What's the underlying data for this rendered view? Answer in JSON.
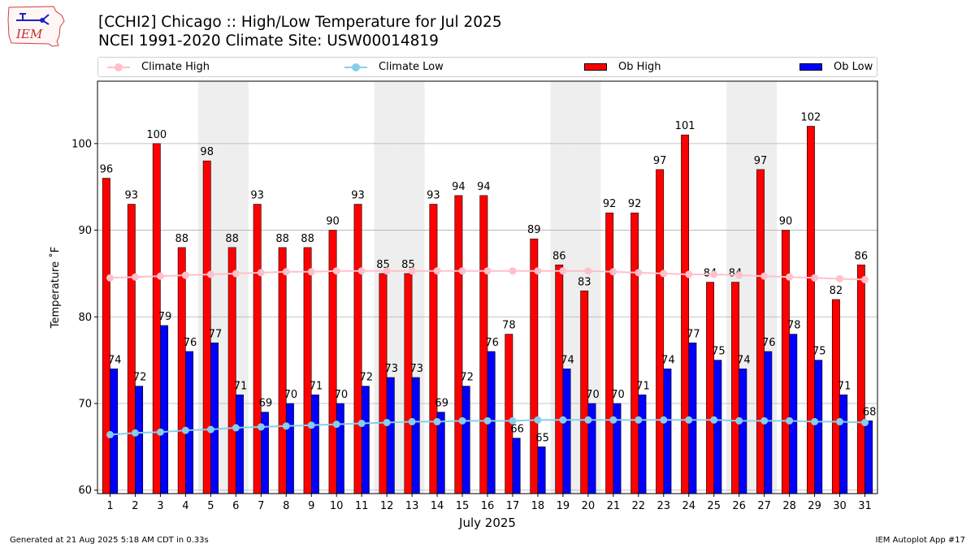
{
  "logo": {
    "text": "IEM",
    "icon": "iowa-state-outline-with-weather-station-icon"
  },
  "title": {
    "line1": "[CCHI2] Chicago :: High/Low Temperature for Jul 2025",
    "line2": "NCEI 1991-2020 Climate Site: USW00014819"
  },
  "legend": {
    "climate_high": "Climate High",
    "climate_low": "Climate Low",
    "ob_high": "Ob High",
    "ob_low": "Ob Low"
  },
  "colors": {
    "ob_high": "#ff0000",
    "ob_low": "#0000ff",
    "climate_high": "#ffc0cb",
    "climate_low": "#87ceeb",
    "weekend_shade": "#eeeeee",
    "grid": "#b0b0b0"
  },
  "footer": {
    "left": "Generated at 21 Aug 2025 5:18 AM CDT in 0.33s",
    "right": "IEM Autoplot App #17"
  },
  "chart_data": {
    "type": "bar",
    "xlabel": "July 2025",
    "ylabel": "Temperature ˚F",
    "ylim": [
      59.6,
      107.2
    ],
    "yticks": [
      60,
      70,
      80,
      90,
      100
    ],
    "grid": true,
    "legend_position": "top",
    "shaded_weekend_days": [
      5,
      6,
      12,
      13,
      19,
      20,
      26,
      27
    ],
    "categories": [
      "1",
      "2",
      "3",
      "4",
      "5",
      "6",
      "7",
      "8",
      "9",
      "10",
      "11",
      "12",
      "13",
      "14",
      "15",
      "16",
      "17",
      "18",
      "19",
      "20",
      "21",
      "22",
      "23",
      "24",
      "25",
      "26",
      "27",
      "28",
      "29",
      "30",
      "31"
    ],
    "series": [
      {
        "name": "Ob High",
        "kind": "bar",
        "values": [
          96,
          93,
          100,
          88,
          98,
          88,
          93,
          88,
          88,
          90,
          93,
          85,
          85,
          93,
          94,
          94,
          78,
          89,
          86,
          83,
          92,
          92,
          97,
          101,
          84,
          84,
          97,
          90,
          102,
          82,
          86
        ]
      },
      {
        "name": "Ob Low",
        "kind": "bar",
        "values": [
          74,
          72,
          79,
          76,
          77,
          71,
          69,
          70,
          71,
          70,
          72,
          73,
          73,
          69,
          72,
          76,
          66,
          65,
          74,
          70,
          70,
          71,
          74,
          77,
          75,
          74,
          76,
          78,
          75,
          71,
          68
        ]
      },
      {
        "name": "Climate High",
        "kind": "line",
        "values": [
          84.5,
          84.6,
          84.7,
          84.8,
          84.9,
          85.0,
          85.1,
          85.2,
          85.2,
          85.3,
          85.3,
          85.3,
          85.3,
          85.3,
          85.3,
          85.3,
          85.3,
          85.3,
          85.3,
          85.3,
          85.2,
          85.1,
          85.0,
          84.9,
          84.9,
          84.8,
          84.7,
          84.6,
          84.5,
          84.4,
          84.3
        ]
      },
      {
        "name": "Climate Low",
        "kind": "line",
        "values": [
          66.4,
          66.6,
          66.7,
          66.9,
          67.0,
          67.2,
          67.3,
          67.4,
          67.5,
          67.6,
          67.7,
          67.8,
          67.9,
          67.9,
          68.0,
          68.0,
          68.0,
          68.1,
          68.1,
          68.1,
          68.1,
          68.1,
          68.1,
          68.1,
          68.1,
          68.0,
          68.0,
          68.0,
          67.9,
          67.9,
          67.8
        ]
      }
    ]
  }
}
